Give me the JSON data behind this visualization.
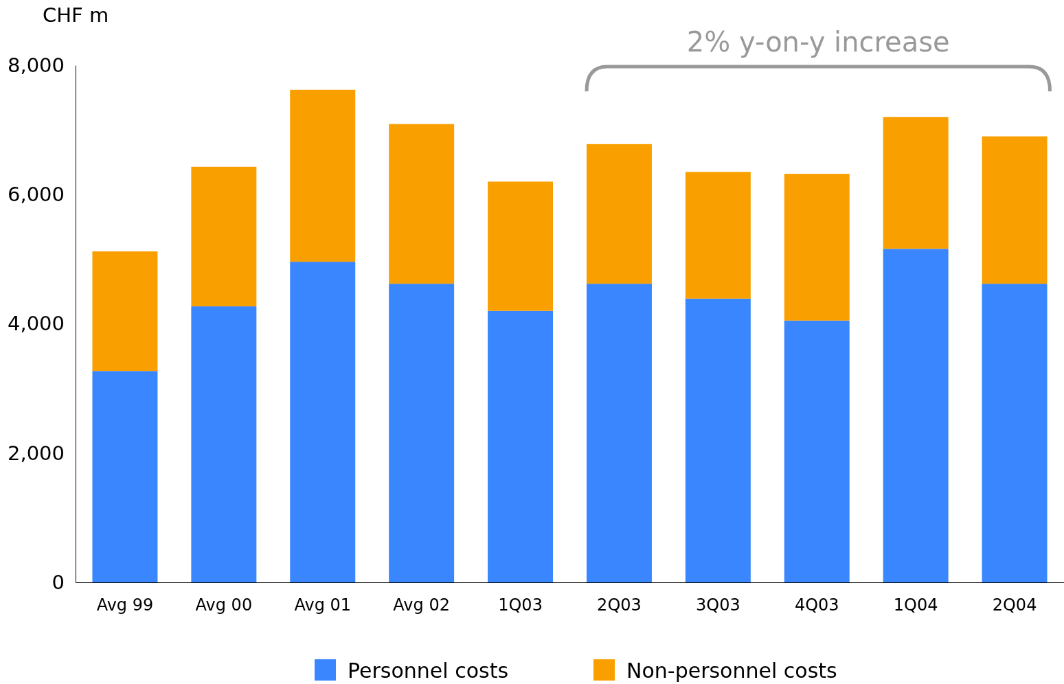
{
  "chart_data": {
    "type": "bar",
    "stacked": true,
    "ylabel": "CHF m",
    "categories": [
      "Avg 99",
      "Avg 00",
      "Avg 01",
      "Avg 02",
      "1Q03",
      "2Q03",
      "3Q03",
      "4Q03",
      "1Q04",
      "2Q04"
    ],
    "series": [
      {
        "name": "Personnel costs",
        "color": "#3a86ff",
        "values": [
          3270,
          4270,
          4960,
          4620,
          4200,
          4620,
          4390,
          4050,
          5160,
          4620
        ]
      },
      {
        "name": "Non-personnel costs",
        "color": "#f9a000",
        "values": [
          1850,
          2160,
          2660,
          2470,
          2000,
          2160,
          1960,
          2270,
          2040,
          2280
        ]
      }
    ],
    "ylim": [
      0,
      8000
    ],
    "yticks": [
      0,
      {
        "value": 2000,
        "label": "2,000"
      },
      {
        "value": 4000,
        "label": "4,000"
      },
      {
        "value": 6000,
        "label": "6,000"
      },
      {
        "value": 8000,
        "label": "8,000"
      }
    ],
    "grid": false,
    "legend": "bottom",
    "annotations": [
      "2% y-on-y increase"
    ]
  }
}
